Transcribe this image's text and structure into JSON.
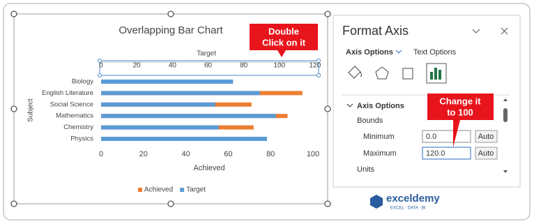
{
  "chart": {
    "type": "bar",
    "title": "Overlapping Bar Chart",
    "categories": [
      "Biology",
      "English Literature",
      "Social Science",
      "Mathematics",
      "Chemistry",
      "Physics"
    ],
    "series": [
      {
        "name": "Achieved",
        "color": "#ed7d31",
        "axis": "x",
        "values": [
          60,
          95,
          71,
          88,
          72,
          70
        ]
      },
      {
        "name": "Target",
        "color": "#5b9bd5",
        "axis": "x2",
        "values": [
          74,
          89,
          64,
          98,
          66,
          93
        ]
      }
    ],
    "xlim": [
      0,
      100
    ],
    "xticks": [
      0,
      20,
      40,
      60,
      80,
      100
    ],
    "x2lim": [
      0,
      120
    ],
    "x2ticks": [
      0,
      20,
      40,
      60,
      80,
      100,
      120
    ],
    "xlabel": "Achieved",
    "x2label": "Target",
    "ylabel": "Subject"
  },
  "pane": {
    "title": "Format Axis",
    "tabs": [
      "Axis Options",
      "Text Options"
    ],
    "section": "Axis Options",
    "group": "Bounds",
    "fields": [
      {
        "label": "Minimum",
        "value": "0.0",
        "button": "Auto"
      },
      {
        "label": "Maximum",
        "value": "120.0",
        "button": "Auto"
      }
    ],
    "next": "Units"
  },
  "callouts": [
    [
      "Double",
      "Click on it"
    ],
    [
      "Change it",
      "to 100"
    ]
  ],
  "logo": {
    "name": "exceldemy",
    "tagline": "EXCEL · DATA · BI"
  }
}
